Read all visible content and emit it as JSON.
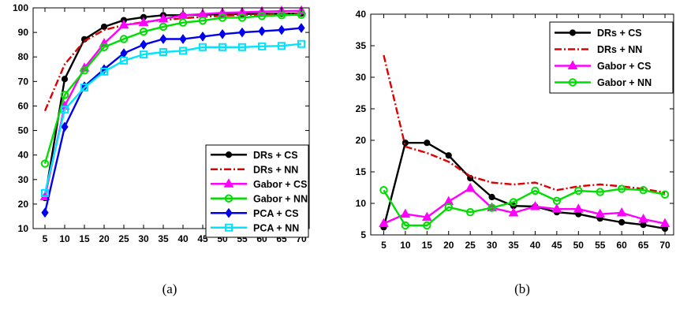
{
  "chart_data": [
    {
      "type": "line",
      "caption": "(a)",
      "x": [
        5,
        10,
        15,
        20,
        25,
        30,
        35,
        40,
        45,
        50,
        55,
        60,
        65,
        70
      ],
      "xlim": [
        2,
        72
      ],
      "ylim": [
        10,
        100
      ],
      "yticks": [
        10,
        20,
        30,
        40,
        50,
        60,
        70,
        80,
        90,
        100
      ],
      "grid": false,
      "legend_position": "bottom-right",
      "series": [
        {
          "name": "DRs + CS",
          "color": "#000000",
          "dash": "solid",
          "marker": "circle",
          "values": [
            22.5,
            71,
            87.2,
            92.3,
            95,
            96.2,
            97,
            97,
            97.2,
            97.4,
            97.5,
            97.6,
            97.6,
            97.7
          ]
        },
        {
          "name": "DRs + NN",
          "color": "#dd0000",
          "dash": "dashdot",
          "marker": "none",
          "values": [
            58,
            77,
            86.5,
            91,
            93,
            94.2,
            95,
            95.8,
            96.3,
            96.8,
            97.1,
            97.3,
            97.5,
            97.6
          ]
        },
        {
          "name": "Gabor + CS",
          "color": "#ff00ff",
          "dash": "solid",
          "marker": "triangle",
          "values": [
            23,
            60,
            75.5,
            85.5,
            93,
            94,
            95.5,
            97,
            97.5,
            98,
            98.2,
            98.5,
            98.7,
            98.8
          ]
        },
        {
          "name": "Gabor + NN",
          "color": "#00dd00",
          "dash": "solid",
          "marker": "circle-open",
          "values": [
            36.5,
            64.5,
            74.5,
            84,
            87.3,
            90.3,
            92.3,
            94,
            94.8,
            96,
            96,
            96.7,
            97,
            97.2
          ]
        },
        {
          "name": "PCA + CS",
          "color": "#0000ee",
          "dash": "solid",
          "marker": "diamond",
          "values": [
            16.5,
            51.5,
            68,
            75,
            81.5,
            85,
            87.3,
            87.3,
            88.3,
            89.3,
            90,
            90.5,
            91,
            91.8
          ]
        },
        {
          "name": "PCA + NN",
          "color": "#00e5ff",
          "dash": "solid",
          "marker": "square-open",
          "values": [
            24.5,
            58.5,
            67.5,
            74,
            78.5,
            81,
            82,
            82.5,
            84,
            84,
            84,
            84.3,
            84.5,
            85.3
          ]
        }
      ]
    },
    {
      "type": "line",
      "caption": "(b)",
      "x": [
        5,
        10,
        15,
        20,
        25,
        30,
        35,
        40,
        45,
        50,
        55,
        60,
        65,
        70
      ],
      "xlim": [
        2,
        72
      ],
      "ylim": [
        5,
        40
      ],
      "yticks": [
        5,
        10,
        15,
        20,
        25,
        30,
        35,
        40
      ],
      "grid": false,
      "legend_position": "top-right",
      "series": [
        {
          "name": "DRs + CS",
          "color": "#000000",
          "dash": "solid",
          "marker": "circle",
          "values": [
            6.2,
            19.6,
            19.6,
            17.6,
            14,
            11,
            9.6,
            9.5,
            8.6,
            8.3,
            7.6,
            7,
            6.6,
            6
          ]
        },
        {
          "name": "DRs + NN",
          "color": "#dd0000",
          "dash": "dashdot",
          "marker": "none",
          "values": [
            33.5,
            19,
            18,
            16.6,
            14.3,
            13.3,
            13,
            13.3,
            12.1,
            12.7,
            13,
            12.7,
            12.3,
            11.7
          ]
        },
        {
          "name": "Gabor + CS",
          "color": "#ff00ff",
          "dash": "solid",
          "marker": "triangle",
          "values": [
            6.8,
            8.3,
            7.8,
            10.3,
            12.4,
            9.3,
            8.5,
            9.5,
            9.1,
            9.1,
            8.3,
            8.5,
            7.5,
            6.8
          ]
        },
        {
          "name": "Gabor + NN",
          "color": "#00dd00",
          "dash": "solid",
          "marker": "circle-open",
          "values": [
            12.1,
            6.5,
            6.5,
            9.4,
            8.6,
            9.3,
            10.2,
            12,
            10.4,
            12,
            11.8,
            12.3,
            12.1,
            11.4
          ]
        }
      ]
    }
  ]
}
